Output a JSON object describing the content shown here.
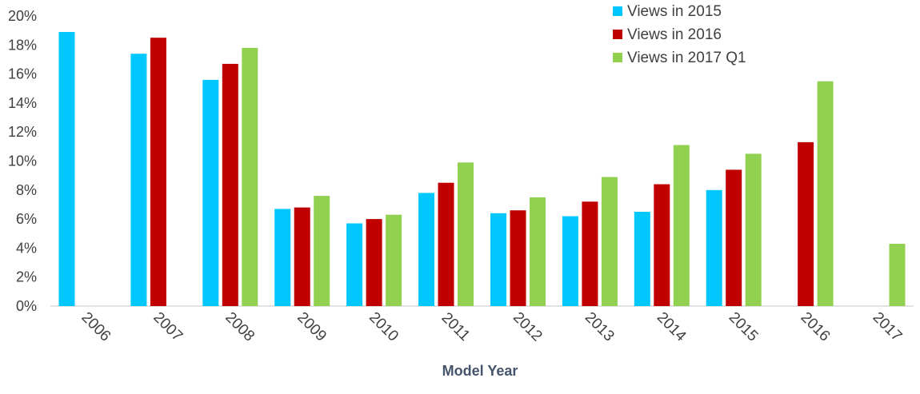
{
  "chart_data": {
    "type": "bar",
    "title": "",
    "xlabel": "Model Year",
    "ylabel": "",
    "ylim": [
      0,
      20
    ],
    "yticks": [
      0,
      2,
      4,
      6,
      8,
      10,
      12,
      14,
      16,
      18,
      20
    ],
    "ytick_suffix": "%",
    "grid": false,
    "legend_position": "top-right",
    "categories": [
      "2006",
      "2007",
      "2008",
      "2009",
      "2010",
      "2011",
      "2012",
      "2013",
      "2014",
      "2015",
      "2016",
      "2017"
    ],
    "series": [
      {
        "name": "Views in 2015",
        "color": "#00c8ff",
        "values": [
          18.9,
          17.4,
          15.6,
          6.7,
          5.7,
          7.8,
          6.4,
          6.2,
          6.5,
          8.0,
          null,
          null
        ]
      },
      {
        "name": "Views in 2016",
        "color": "#c00000",
        "values": [
          null,
          18.5,
          16.7,
          6.8,
          6.0,
          8.5,
          6.6,
          7.2,
          8.4,
          9.4,
          11.3,
          null
        ]
      },
      {
        "name": "Views in 2017 Q1",
        "color": "#92d050",
        "values": [
          null,
          null,
          17.8,
          7.6,
          6.3,
          9.9,
          7.5,
          8.9,
          11.1,
          10.5,
          15.5,
          4.3
        ]
      }
    ]
  }
}
